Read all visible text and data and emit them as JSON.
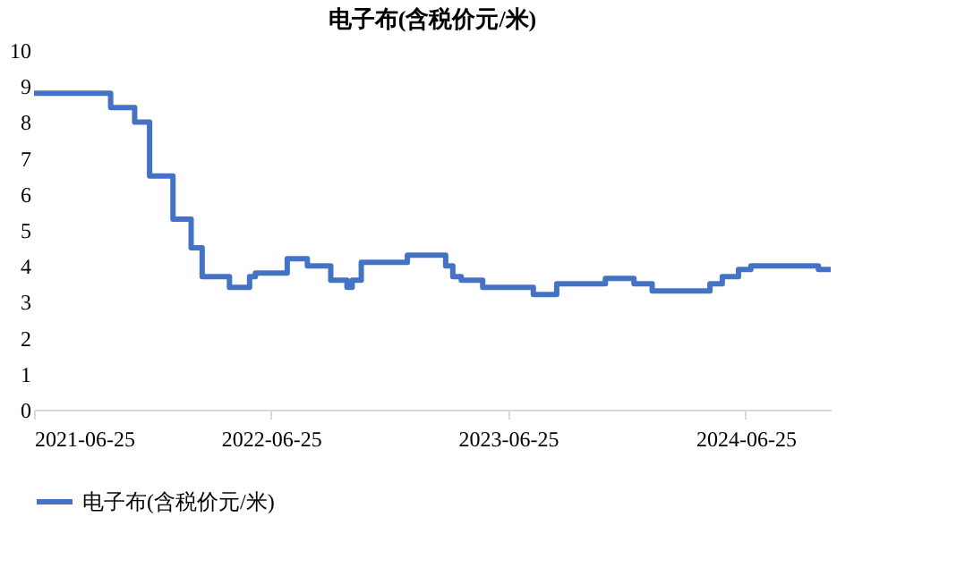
{
  "chart_data": {
    "type": "step",
    "title": "电子布(含税价元/米)",
    "x": [
      "2021-06-25",
      "2021-10-21",
      "2021-11-27",
      "2021-12-20",
      "2022-01-25",
      "2022-02-22",
      "2022-03-11",
      "2022-04-22",
      "2022-05-23",
      "2022-06-01",
      "2022-07-20",
      "2022-08-20",
      "2022-09-25",
      "2022-10-20",
      "2022-10-28",
      "2022-11-11",
      "2023-01-21",
      "2023-03-21",
      "2023-04-01",
      "2023-04-14",
      "2023-05-17",
      "2023-08-03",
      "2023-09-08",
      "2023-11-22",
      "2024-01-05",
      "2024-02-02",
      "2024-05-01",
      "2024-05-20",
      "2024-06-14",
      "2024-07-03",
      "2024-10-15",
      "2024-11-03"
    ],
    "series": [
      {
        "name": "电子布(含税价元/米)",
        "color": "#4472c4",
        "values": [
          8.8,
          8.4,
          8.0,
          6.5,
          5.3,
          4.5,
          3.7,
          3.4,
          3.7,
          3.8,
          4.2,
          4.0,
          3.6,
          3.4,
          3.6,
          4.1,
          4.3,
          4.0,
          3.7,
          3.6,
          3.4,
          3.2,
          3.5,
          3.65,
          3.5,
          3.3,
          3.5,
          3.7,
          3.9,
          4.0,
          3.9,
          3.9
        ]
      }
    ],
    "xlim": [
      "2021-06-25",
      "2024-11-03"
    ],
    "xticks": [
      "2021-06-25",
      "2022-06-25",
      "2023-06-25",
      "2024-06-25"
    ],
    "ylim": [
      0,
      10
    ],
    "yticks": [
      0,
      1,
      2,
      3,
      4,
      5,
      6,
      7,
      8,
      9,
      10
    ],
    "grid": false,
    "legend": "bottom",
    "marker": "none",
    "line_style": "solid"
  }
}
